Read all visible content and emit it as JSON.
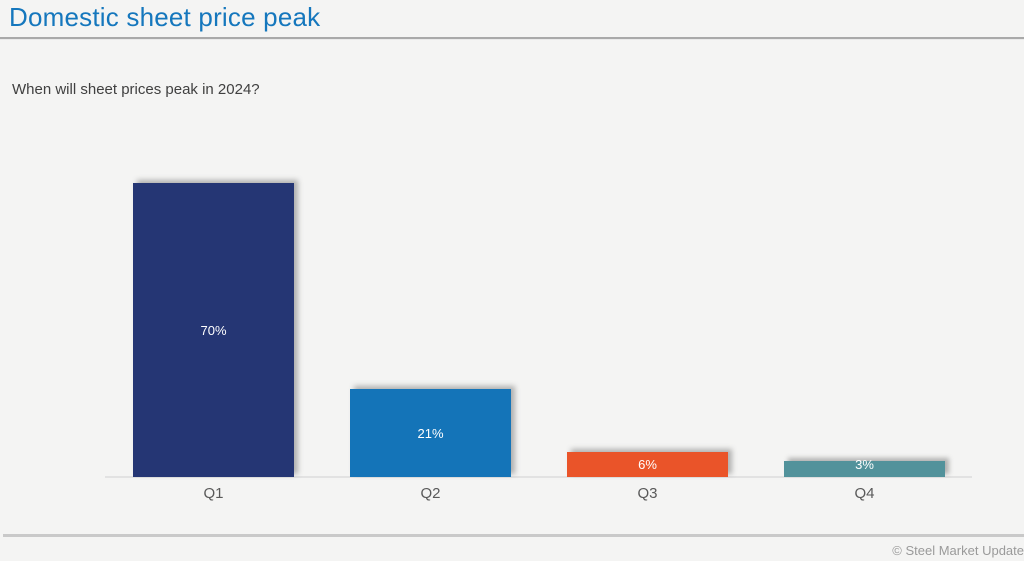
{
  "page": {
    "title": "Domestic sheet price peak",
    "subtitle": "When will sheet prices peak in 2024?",
    "footer_credit": "© Steel Market Update"
  },
  "colors": {
    "title_text": "#1577bd",
    "background": "#f4f4f3",
    "axis_line": "#e2e2e2",
    "category_label_text": "#595959",
    "bar_label_text": "#ffffff",
    "footer_text": "#9a9a9a"
  },
  "chart_data": {
    "type": "bar",
    "title": "Domestic sheet price peak",
    "question": "When will sheet prices peak in 2024?",
    "categories": [
      "Q1",
      "Q2",
      "Q3",
      "Q4"
    ],
    "values": [
      70,
      21,
      6,
      3
    ],
    "data_labels": [
      "70%",
      "21%",
      "6%",
      "3%"
    ],
    "bar_colors": [
      "#253674",
      "#1474b8",
      "#ea5429",
      "#52929b"
    ],
    "unit": "%",
    "ylim": [
      0,
      75
    ],
    "xlabel": "",
    "ylabel": "",
    "grid": false,
    "legend": false,
    "data_label_position": "inside-center"
  }
}
